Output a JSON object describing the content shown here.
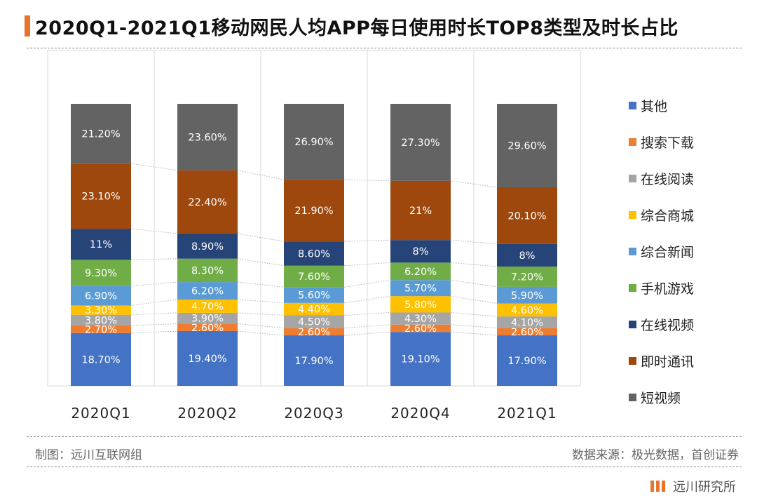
{
  "header": {
    "title": "2020Q1-2021Q1移动网民人均APP每日使用时长TOP8类型及时长占比"
  },
  "footer": {
    "made_by": "制图：远川互联网组",
    "source": "数据来源：极光数据，首创证券"
  },
  "brand": {
    "name": "远川研究所",
    "accent": "#e8742c"
  },
  "chart_data": {
    "type": "bar",
    "stacked": true,
    "percent_stacked": true,
    "categories": [
      "2020Q1",
      "2020Q2",
      "2020Q3",
      "2020Q4",
      "2021Q1"
    ],
    "legend_position": "right",
    "series": [
      {
        "name": "其他",
        "color": "#4472c4",
        "values": [
          18.7,
          19.4,
          17.9,
          19.1,
          17.9
        ],
        "labels": [
          "18.70%",
          "19.40%",
          "17.90%",
          "19.10%",
          "17.90%"
        ]
      },
      {
        "name": "搜索下载",
        "color": "#ed7d31",
        "values": [
          2.7,
          2.6,
          2.6,
          2.6,
          2.6
        ],
        "labels": [
          "2.70%",
          "2.60%",
          "2.60%",
          "2.60%",
          "2.60%"
        ]
      },
      {
        "name": "在线阅读",
        "color": "#a5a5a5",
        "values": [
          3.8,
          3.9,
          4.5,
          4.3,
          4.1
        ],
        "labels": [
          "3.80%",
          "3.90%",
          "4.50%",
          "4.30%",
          "4.10%"
        ]
      },
      {
        "name": "综合商城",
        "color": "#ffc000",
        "values": [
          3.3,
          4.7,
          4.4,
          5.8,
          4.6
        ],
        "labels": [
          "3.30%",
          "4.70%",
          "4.40%",
          "5.80%",
          "4.60%"
        ]
      },
      {
        "name": "综合新闻",
        "color": "#5b9bd5",
        "values": [
          6.9,
          6.2,
          5.6,
          5.7,
          5.9
        ],
        "labels": [
          "6.90%",
          "6.20%",
          "5.60%",
          "5.70%",
          "5.90%"
        ]
      },
      {
        "name": "手机游戏",
        "color": "#70ad47",
        "values": [
          9.3,
          8.3,
          7.6,
          6.2,
          7.2
        ],
        "labels": [
          "9.30%",
          "8.30%",
          "7.60%",
          "6.20%",
          "7.20%"
        ]
      },
      {
        "name": "在线视频",
        "color": "#264478",
        "values": [
          11,
          8.9,
          8.6,
          8,
          8
        ],
        "labels": [
          "11%",
          "8.90%",
          "8.60%",
          "8%",
          "8%"
        ]
      },
      {
        "name": "即时通讯",
        "color": "#9e480e",
        "values": [
          23.1,
          22.4,
          21.9,
          21,
          20.1
        ],
        "labels": [
          "23.10%",
          "22.40%",
          "21.90%",
          "21%",
          "20.10%"
        ]
      },
      {
        "name": "短视频",
        "color": "#636363",
        "values": [
          21.2,
          23.6,
          26.9,
          27.3,
          29.6
        ],
        "labels": [
          "21.20%",
          "23.60%",
          "26.90%",
          "27.30%",
          "29.60%"
        ]
      }
    ]
  }
}
